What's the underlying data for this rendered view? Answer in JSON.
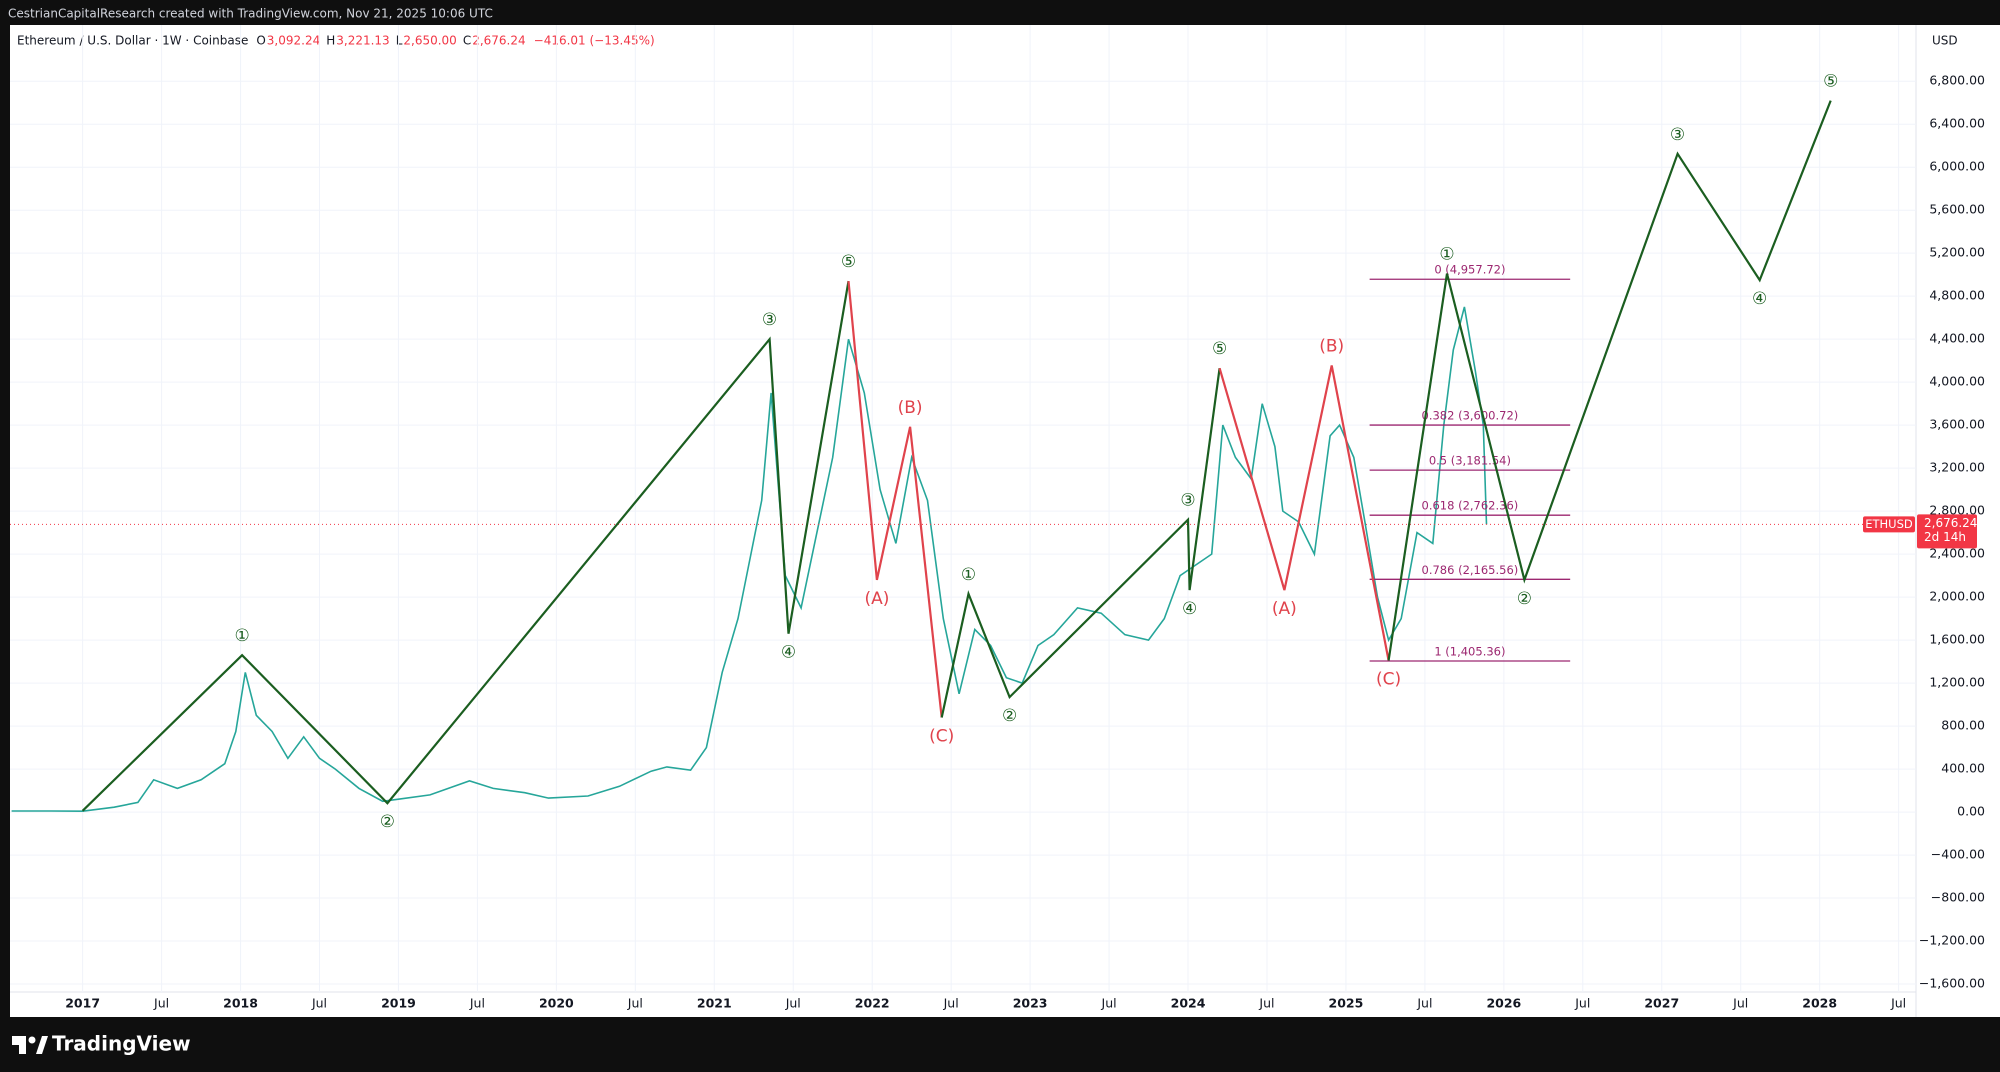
{
  "header": {
    "credit": "CestrianCapitalResearch created with TradingView.com, Nov 21, 2025 10:06 UTC",
    "ohlc": [
      [
        "O",
        "3,092.24"
      ],
      [
        "H",
        "3,221.13"
      ],
      [
        "L",
        "2,650.00"
      ],
      [
        "C",
        "2,676.24"
      ]
    ],
    "change": "−416.01 (−13.45%)",
    "footer": "TradingView"
  },
  "chart_data": {
    "type": "line",
    "title": "Ethereum / U.S. Dollar · 1W · Coinbase",
    "currency": "USD",
    "xlim": [
      2016.54,
      2028.61
    ],
    "ylim": [
      -1674,
      7323
    ],
    "grid": true,
    "xticks": [
      2017,
      {
        "value": 2017.5,
        "label": "Jul"
      },
      2018,
      {
        "value": 2018.5,
        "label": "Jul"
      },
      2019,
      {
        "value": 2019.5,
        "label": "Jul"
      },
      2020,
      {
        "value": 2020.5,
        "label": "Jul"
      },
      2021,
      {
        "value": 2021.5,
        "label": "Jul"
      },
      2022,
      {
        "value": 2022.5,
        "label": "Jul"
      },
      2023,
      {
        "value": 2023.5,
        "label": "Jul"
      },
      2024,
      {
        "value": 2024.5,
        "label": "Jul"
      },
      2025,
      {
        "value": 2025.5,
        "label": "Jul"
      },
      2026,
      {
        "value": 2026.5,
        "label": "Jul"
      },
      2027,
      {
        "value": 2027.5,
        "label": "Jul"
      },
      2028,
      {
        "value": 2028.5,
        "label": "Jul"
      }
    ],
    "yticks": [
      {
        "value": -1600,
        "label": "−1,600.00"
      },
      {
        "value": -1200,
        "label": "−1,200.00"
      },
      {
        "value": -800,
        "label": "−800.00"
      },
      {
        "value": -400,
        "label": "−400.00"
      },
      {
        "value": 0,
        "label": "0.00"
      },
      {
        "value": 400,
        "label": "400.00"
      },
      {
        "value": 800,
        "label": "800.00"
      },
      {
        "value": 1200,
        "label": "1,200.00"
      },
      {
        "value": 1600,
        "label": "1,600.00"
      },
      {
        "value": 2000,
        "label": "2,000.00"
      },
      {
        "value": 2400,
        "label": "2,400.00"
      },
      {
        "value": 2800,
        "label": "2,800.00"
      },
      {
        "value": 3200,
        "label": "3,200.00"
      },
      {
        "value": 3600,
        "label": "3,600.00"
      },
      {
        "value": 4000,
        "label": "4,000.00"
      },
      {
        "value": 4400,
        "label": "4,400.00"
      },
      {
        "value": 4800,
        "label": "4,800.00"
      },
      {
        "value": 5200,
        "label": "5,200.00"
      },
      {
        "value": 5600,
        "label": "5,600.00"
      },
      {
        "value": 6000,
        "label": "6,000.00"
      },
      {
        "value": 6400,
        "label": "6,400.00"
      },
      {
        "value": 6800,
        "label": "6,800.00"
      }
    ],
    "series": [
      {
        "name": "ETHUSD",
        "color": "#26a69a",
        "x": [
          2016.55,
          2016.8,
          2017.0,
          2017.2,
          2017.35,
          2017.45,
          2017.6,
          2017.75,
          2017.9,
          2017.97,
          2018.03,
          2018.1,
          2018.2,
          2018.3,
          2018.4,
          2018.5,
          2018.6,
          2018.75,
          2018.9,
          2019.0,
          2019.2,
          2019.45,
          2019.6,
          2019.8,
          2019.95,
          2020.2,
          2020.4,
          2020.6,
          2020.7,
          2020.85,
          2020.95,
          2021.05,
          2021.15,
          2021.3,
          2021.36,
          2021.45,
          2021.55,
          2021.65,
          2021.75,
          2021.85,
          2021.95,
          2022.05,
          2022.15,
          2022.25,
          2022.35,
          2022.45,
          2022.55,
          2022.65,
          2022.75,
          2022.85,
          2022.95,
          2023.05,
          2023.15,
          2023.3,
          2023.45,
          2023.6,
          2023.75,
          2023.85,
          2023.95,
          2024.05,
          2024.15,
          2024.22,
          2024.3,
          2024.4,
          2024.47,
          2024.55,
          2024.6,
          2024.7,
          2024.8,
          2024.9,
          2024.96,
          2025.05,
          2025.12,
          2025.2,
          2025.27,
          2025.35,
          2025.45,
          2025.55,
          2025.62,
          2025.68,
          2025.75,
          2025.82,
          2025.87,
          2025.89
        ],
        "values": [
          10,
          10,
          8,
          45,
          90,
          300,
          220,
          300,
          450,
          750,
          1300,
          900,
          750,
          500,
          700,
          500,
          400,
          220,
          100,
          120,
          160,
          290,
          220,
          180,
          130,
          150,
          240,
          380,
          420,
          390,
          600,
          1300,
          1800,
          2900,
          3900,
          2200,
          1900,
          2600,
          3300,
          4400,
          3900,
          3000,
          2500,
          3300,
          2900,
          1800,
          1100,
          1700,
          1550,
          1250,
          1200,
          1550,
          1650,
          1900,
          1850,
          1650,
          1600,
          1800,
          2200,
          2300,
          2400,
          3600,
          3300,
          3100,
          3800,
          3400,
          2800,
          2700,
          2400,
          3500,
          3600,
          3300,
          2700,
          2000,
          1600,
          1800,
          2600,
          2500,
          3600,
          4300,
          4700,
          4100,
          3600,
          2676.24
        ]
      }
    ],
    "waves": [
      {
        "color": "#1b5e20",
        "x": [
          2017.0,
          2018.01,
          2018.93,
          2021.35,
          2021.47,
          2021.85
        ],
        "values": [
          12,
          1460,
          83,
          4400,
          1660,
          4940
        ],
        "labels": [
          null,
          "①",
          "②",
          "③",
          "④",
          "⑤"
        ]
      },
      {
        "color": "#e0434c",
        "x": [
          2021.85,
          2022.03,
          2022.24,
          2022.44
        ],
        "values": [
          4940,
          2160,
          3585,
          880
        ],
        "labels": [
          null,
          "(A)",
          "(B)",
          "(C)"
        ]
      },
      {
        "color": "#1b5e20",
        "x": [
          2022.44,
          2022.61,
          2022.87,
          2024.0,
          2024.01,
          2024.2
        ],
        "values": [
          880,
          2030,
          1070,
          2720,
          2065,
          4130
        ],
        "labels": [
          null,
          "①",
          "②",
          "③",
          "④",
          "⑤"
        ]
      },
      {
        "color": "#e0434c",
        "x": [
          2024.2,
          2024.61,
          2024.91,
          2025.27
        ],
        "values": [
          4130,
          2065,
          4155,
          1410
        ],
        "labels": [
          null,
          "(A)",
          "(B)",
          "(C)"
        ]
      },
      {
        "color": "#1b5e20",
        "x": [
          2025.27,
          2025.64,
          2026.13,
          2027.1,
          2027.62,
          2028.07
        ],
        "values": [
          1410,
          5010,
          2160,
          6125,
          4950,
          6620
        ],
        "labels": [
          null,
          "①",
          "②",
          "③",
          "④",
          "⑤"
        ]
      }
    ],
    "fib": {
      "color": "#9c2770",
      "x": [
        2025.15,
        2026.42
      ],
      "levels": [
        {
          "value": 4957.72,
          "label": "0 (4,957.72)"
        },
        {
          "value": 3600.72,
          "label": "0.382 (3,600.72)"
        },
        {
          "value": 3181.54,
          "label": "0.5 (3,181.54)"
        },
        {
          "value": 2762.36,
          "label": "0.618 (2,762.36)"
        },
        {
          "value": 2165.56,
          "label": "0.786 (2,165.56)"
        },
        {
          "value": 1405.36,
          "label": "1 (1,405.36)"
        }
      ]
    },
    "last": {
      "value": 2676.24,
      "label": "2,676.24",
      "countdown": "2d 14h",
      "color": "#f23645"
    }
  }
}
